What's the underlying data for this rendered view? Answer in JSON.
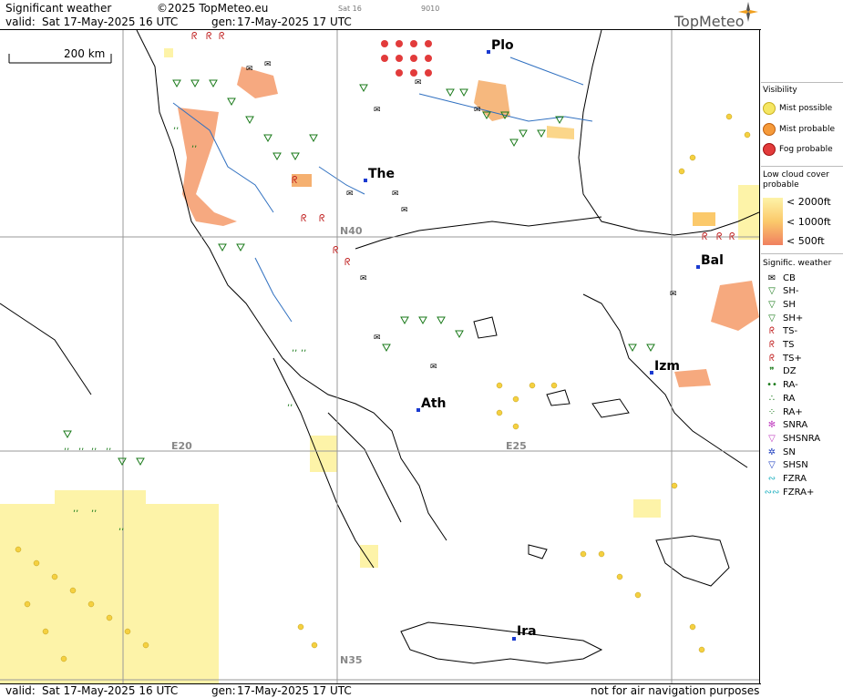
{
  "header": {
    "title": "Significant weather",
    "copyright": "©2025 TopMeteo.eu",
    "satellite_tag": "Sat 16",
    "code_tag": "9010",
    "valid_label": "valid:",
    "valid_value": "Sat  17-May-2025  16 UTC",
    "gen_label": "gen:",
    "gen_value": "17-May-2025 17 UTC",
    "brand": "TopMeteo"
  },
  "map": {
    "scale_label": "200 km",
    "cities": [
      {
        "name": "Plo"
      },
      {
        "name": "The"
      },
      {
        "name": "Bal"
      },
      {
        "name": "Izm"
      },
      {
        "name": "Ath"
      },
      {
        "name": "Ira"
      }
    ],
    "grid_labels": {
      "lat40": "N40",
      "lat35": "N35",
      "lon20": "E20",
      "lon25": "E25"
    }
  },
  "footer": {
    "valid_label": "valid:",
    "valid_value": "Sat  17-May-2025  16 UTC",
    "gen_label": "gen:",
    "gen_value": "17-May-2025 17 UTC",
    "disclaimer": "not for air navigation purposes"
  },
  "legend": {
    "visibility_title": "Visibility",
    "visibility_items": [
      {
        "label": "Mist possible",
        "color": "#f5e663"
      },
      {
        "label": "Mist probable",
        "color": "#f59a3a"
      },
      {
        "label": "Fog probable",
        "color": "#e23b3b"
      }
    ],
    "cloud_title_1": "Low cloud cover",
    "cloud_title_2": "probable",
    "cloud_items": [
      {
        "label": "< 2000ft",
        "color": "#fdf3a8"
      },
      {
        "label": "< 1000ft",
        "color": "#fbc96b"
      },
      {
        "label": "<   500ft",
        "color": "#f08060"
      }
    ],
    "weather_title": "Signific. weather",
    "weather_items": [
      {
        "label": "CB",
        "icon": "cb-icon",
        "color": "#000000"
      },
      {
        "label": "SH-",
        "icon": "shower-light-icon",
        "color": "#1a7a1a"
      },
      {
        "label": "SH",
        "icon": "shower-icon",
        "color": "#1a7a1a"
      },
      {
        "label": "SH+",
        "icon": "shower-heavy-icon",
        "color": "#1a7a1a"
      },
      {
        "label": "TS-",
        "icon": "thunderstorm-light-icon",
        "color": "#c02020"
      },
      {
        "label": "TS",
        "icon": "thunderstorm-icon",
        "color": "#c02020"
      },
      {
        "label": "TS+",
        "icon": "thunderstorm-heavy-icon",
        "color": "#c02020"
      },
      {
        "label": "DZ",
        "icon": "drizzle-icon",
        "color": "#1a7a1a"
      },
      {
        "label": "RA-",
        "icon": "rain-light-icon",
        "color": "#1a7a1a"
      },
      {
        "label": "RA",
        "icon": "rain-icon",
        "color": "#1a7a1a"
      },
      {
        "label": "RA+",
        "icon": "rain-heavy-icon",
        "color": "#1a7a1a"
      },
      {
        "label": "SNRA",
        "icon": "snow-rain-icon",
        "color": "#c040c0"
      },
      {
        "label": "SHSNRA",
        "icon": "snow-rain-shower-icon",
        "color": "#c040c0"
      },
      {
        "label": "SN",
        "icon": "snow-icon",
        "color": "#2040c0"
      },
      {
        "label": "SHSN",
        "icon": "snow-shower-icon",
        "color": "#2040c0"
      },
      {
        "label": "FZRA",
        "icon": "freezing-rain-icon",
        "color": "#20b0c0"
      },
      {
        "label": "FZRA+",
        "icon": "freezing-rain-heavy-icon",
        "color": "#20b0c0"
      }
    ]
  }
}
